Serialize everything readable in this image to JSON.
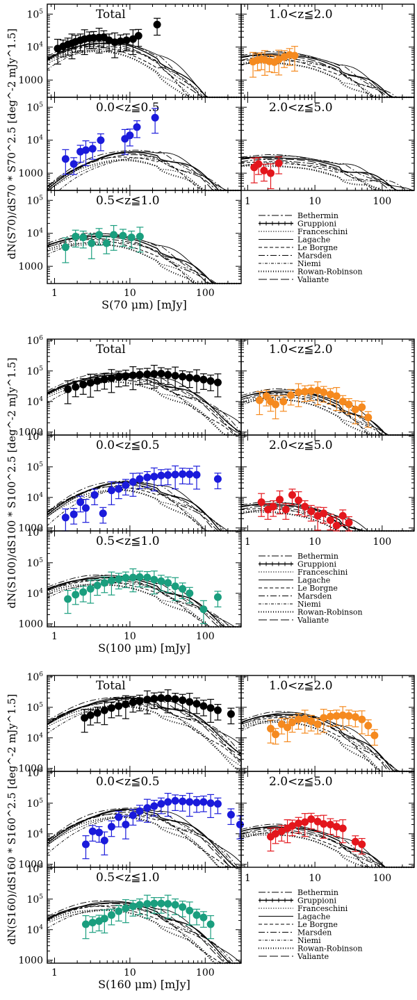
{
  "figure": {
    "panel_labels": {
      "total": "Total",
      "z1": "0.0<z≦0.5",
      "z2": "0.5<z≦1.0",
      "z3": "1.0<z≦2.0",
      "z4": "2.0<z≦5.0"
    },
    "legend": [
      "Bethermin",
      "Gruppioni",
      "Franceschini",
      "Lagache",
      "Le Borgne",
      "Marsden",
      "Niemi",
      "Rowan-Robinson",
      "Valiante"
    ],
    "colors": {
      "total": "#000000",
      "z1": "#1a1adb",
      "z2": "#1a9e7e",
      "z3": "#f58a1f",
      "z4": "#e3161c"
    }
  },
  "chart_data": [
    {
      "type": "scatter",
      "band": "70",
      "xlabel": "S(70 μm) [mJy]",
      "ylabel": "dN(S70)/dS70 * S70^2.5 [deg^-2 mJy^1.5]",
      "xlim": [
        0.8,
        300
      ],
      "ylim": [
        300,
        200000
      ],
      "xscale": "log",
      "yscale": "log",
      "xticks": [
        "1",
        "10",
        "100"
      ],
      "yticks": [
        "1000",
        "10^4",
        "10^5"
      ],
      "panels": [
        {
          "key": "total",
          "x": [
            1.1,
            1.3,
            1.5,
            1.7,
            1.9,
            2.2,
            2.5,
            2.9,
            3.3,
            3.9,
            4.5,
            5.3,
            6.3,
            7.5,
            9,
            11,
            13,
            23
          ],
          "y": [
            9000,
            10500,
            12000,
            13000,
            14500,
            16000,
            17500,
            18500,
            19000,
            19500,
            20000,
            16000,
            14000,
            15000,
            16000,
            17500,
            22000,
            48000
          ]
        },
        {
          "key": "z1",
          "x": [
            1.4,
            1.8,
            2.2,
            2.6,
            3.2,
            4.1,
            8.6,
            10,
            12.4,
            21.6
          ],
          "y": [
            2700,
            1900,
            4500,
            5000,
            5500,
            10000,
            11000,
            14000,
            25000,
            48000
          ]
        },
        {
          "key": "z2",
          "x": [
            1.4,
            1.9,
            2.4,
            3.1,
            3.9,
            4.9,
            6.1,
            8.1,
            10.5,
            13.6
          ],
          "y": [
            3800,
            8000,
            7500,
            5000,
            9000,
            5000,
            9000,
            8500,
            7500,
            8000
          ]
        },
        {
          "key": "z3",
          "x": [
            1.2,
            1.4,
            1.6,
            1.8,
            2.1,
            2.5,
            2.9,
            3.5,
            4.2,
            5
          ],
          "y": [
            3600,
            4000,
            4300,
            4100,
            3700,
            3500,
            4200,
            5000,
            5800,
            5500
          ]
        },
        {
          "key": "z4",
          "x": [
            1.25,
            1.45,
            1.75,
            2.2,
            2.9
          ],
          "y": [
            1500,
            1900,
            1200,
            1000,
            2000
          ]
        }
      ]
    },
    {
      "type": "scatter",
      "band": "100",
      "xlabel": "S(100 μm) [mJy]",
      "ylabel": "dN(S100)/dS100 * S100^2.5 [deg^-2 mJy^1.5]",
      "xlim": [
        0.8,
        300
      ],
      "ylim": [
        800,
        1100000
      ],
      "xscale": "log",
      "yscale": "log",
      "xticks": [
        "1",
        "10",
        "100"
      ],
      "yticks": [
        "1000",
        "10^4",
        "10^5",
        "10^6"
      ],
      "panels": [
        {
          "key": "total",
          "x": [
            1.5,
            1.9,
            2.4,
            3,
            3.7,
            4.6,
            5.7,
            7.1,
            8.8,
            11,
            13.5,
            17,
            21,
            26,
            32,
            40,
            50,
            62,
            77,
            95,
            118,
            147
          ],
          "y": [
            25000,
            30000,
            36000,
            41000,
            47000,
            53000,
            58000,
            63000,
            68000,
            72000,
            75000,
            78000,
            80000,
            82000,
            75000,
            70000,
            65000,
            60000,
            57000,
            52000,
            47000,
            42000
          ]
        },
        {
          "key": "z1",
          "x": [
            1.4,
            1.8,
            2.2,
            2.6,
            3.4,
            4.4,
            5.7,
            7.1,
            8.8,
            11,
            13.5,
            17,
            21,
            26,
            32,
            40,
            50,
            62,
            77,
            147
          ],
          "y": [
            2200,
            2800,
            7000,
            4500,
            12000,
            3000,
            17000,
            19000,
            25000,
            32000,
            40000,
            45000,
            48000,
            52000,
            54000,
            56000,
            58000,
            57000,
            55000,
            40000
          ]
        },
        {
          "key": "z2",
          "x": [
            1.5,
            1.9,
            2.4,
            3,
            3.7,
            4.6,
            5.7,
            7.1,
            8.8,
            11,
            13.5,
            17,
            21,
            26,
            32,
            40,
            50,
            62,
            95,
            147
          ],
          "y": [
            6500,
            9000,
            11000,
            14000,
            18000,
            22000,
            26000,
            29000,
            32000,
            33000,
            34000,
            33000,
            28000,
            25000,
            22000,
            17000,
            14000,
            10000,
            3000,
            7500
          ]
        },
        {
          "key": "z3",
          "x": [
            1.5,
            1.9,
            2.2,
            2.6,
            3.4,
            4.4,
            5.7,
            7.1,
            8.8,
            11,
            13.5,
            17,
            21,
            26,
            32,
            40,
            50,
            62
          ],
          "y": [
            11000,
            15000,
            10000,
            8000,
            10000,
            16000,
            20000,
            21000,
            22000,
            23000,
            20000,
            17000,
            15000,
            10000,
            8000,
            5500,
            6500,
            3000
          ]
        },
        {
          "key": "z4",
          "x": [
            1.6,
            2,
            2.4,
            3,
            3.7,
            4.6,
            5.7,
            7.1,
            8.8,
            11,
            13.5,
            17,
            21,
            26,
            32
          ],
          "y": [
            7000,
            4000,
            5000,
            8500,
            4000,
            12000,
            8000,
            5000,
            3500,
            2500,
            3000,
            1800,
            1200,
            2500,
            1500
          ]
        }
      ]
    },
    {
      "type": "scatter",
      "band": "160",
      "xlabel": "S(160 μm) [mJy]",
      "ylabel": "dN(S160)/dS160 * S160^2.5 [deg^-2 mJy^1.5]",
      "xlim": [
        0.8,
        300
      ],
      "ylim": [
        800,
        1100000
      ],
      "xscale": "log",
      "yscale": "log",
      "xticks": [
        "1",
        "10",
        "100"
      ],
      "yticks": [
        "1000",
        "10^4",
        "10^5",
        "10^6"
      ],
      "panels": [
        {
          "key": "total",
          "x": [
            2.5,
            3,
            3.7,
            4.6,
            5.7,
            7.1,
            8.8,
            11,
            13.5,
            17,
            21,
            26,
            32,
            40,
            50,
            62,
            77,
            95,
            118,
            147,
            220
          ],
          "y": [
            45000,
            55000,
            65000,
            80000,
            95000,
            110000,
            125000,
            145000,
            160000,
            180000,
            190000,
            200000,
            195000,
            185000,
            170000,
            150000,
            130000,
            110000,
            95000,
            80000,
            60000
          ]
        },
        {
          "key": "z1",
          "x": [
            2.6,
            3.2,
            3.9,
            4.6,
            5.7,
            7.1,
            8.8,
            11,
            13.5,
            17,
            21,
            26,
            32,
            40,
            50,
            62,
            77,
            95,
            118,
            147,
            220,
            290
          ],
          "y": [
            4500,
            12000,
            11000,
            6000,
            17000,
            35000,
            20000,
            40000,
            55000,
            70000,
            80000,
            95000,
            110000,
            120000,
            115000,
            110000,
            105000,
            110000,
            100000,
            95000,
            42000,
            20000
          ]
        },
        {
          "key": "z2",
          "x": [
            2.6,
            3.2,
            3.9,
            4.6,
            5.7,
            7.1,
            8.8,
            11,
            13.5,
            17,
            21,
            26,
            32,
            40,
            50,
            62,
            77,
            95,
            118
          ],
          "y": [
            15000,
            17000,
            19000,
            23000,
            30000,
            40000,
            50000,
            58000,
            65000,
            70000,
            72000,
            72000,
            70000,
            65000,
            55000,
            42000,
            30000,
            25000,
            15000
          ]
        },
        {
          "key": "z3",
          "x": [
            2.2,
            2.6,
            3.2,
            3.9,
            4.6,
            5.7,
            7.1,
            8.8,
            11,
            13.5,
            17,
            21,
            26,
            32,
            40,
            50,
            62,
            77
          ],
          "y": [
            20000,
            13000,
            28000,
            22000,
            32000,
            40000,
            42000,
            35000,
            28000,
            45000,
            50000,
            52000,
            55000,
            52000,
            48000,
            40000,
            25000,
            12000
          ]
        },
        {
          "key": "z4",
          "x": [
            2.2,
            2.6,
            3.2,
            3.9,
            4.6,
            5.7,
            7.1,
            8.8,
            11,
            13.5,
            17,
            21,
            26,
            40,
            50
          ],
          "y": [
            8000,
            10000,
            12000,
            15000,
            18000,
            22000,
            24000,
            30000,
            25000,
            21000,
            20000,
            17000,
            15000,
            5500,
            4500
          ]
        }
      ]
    }
  ]
}
